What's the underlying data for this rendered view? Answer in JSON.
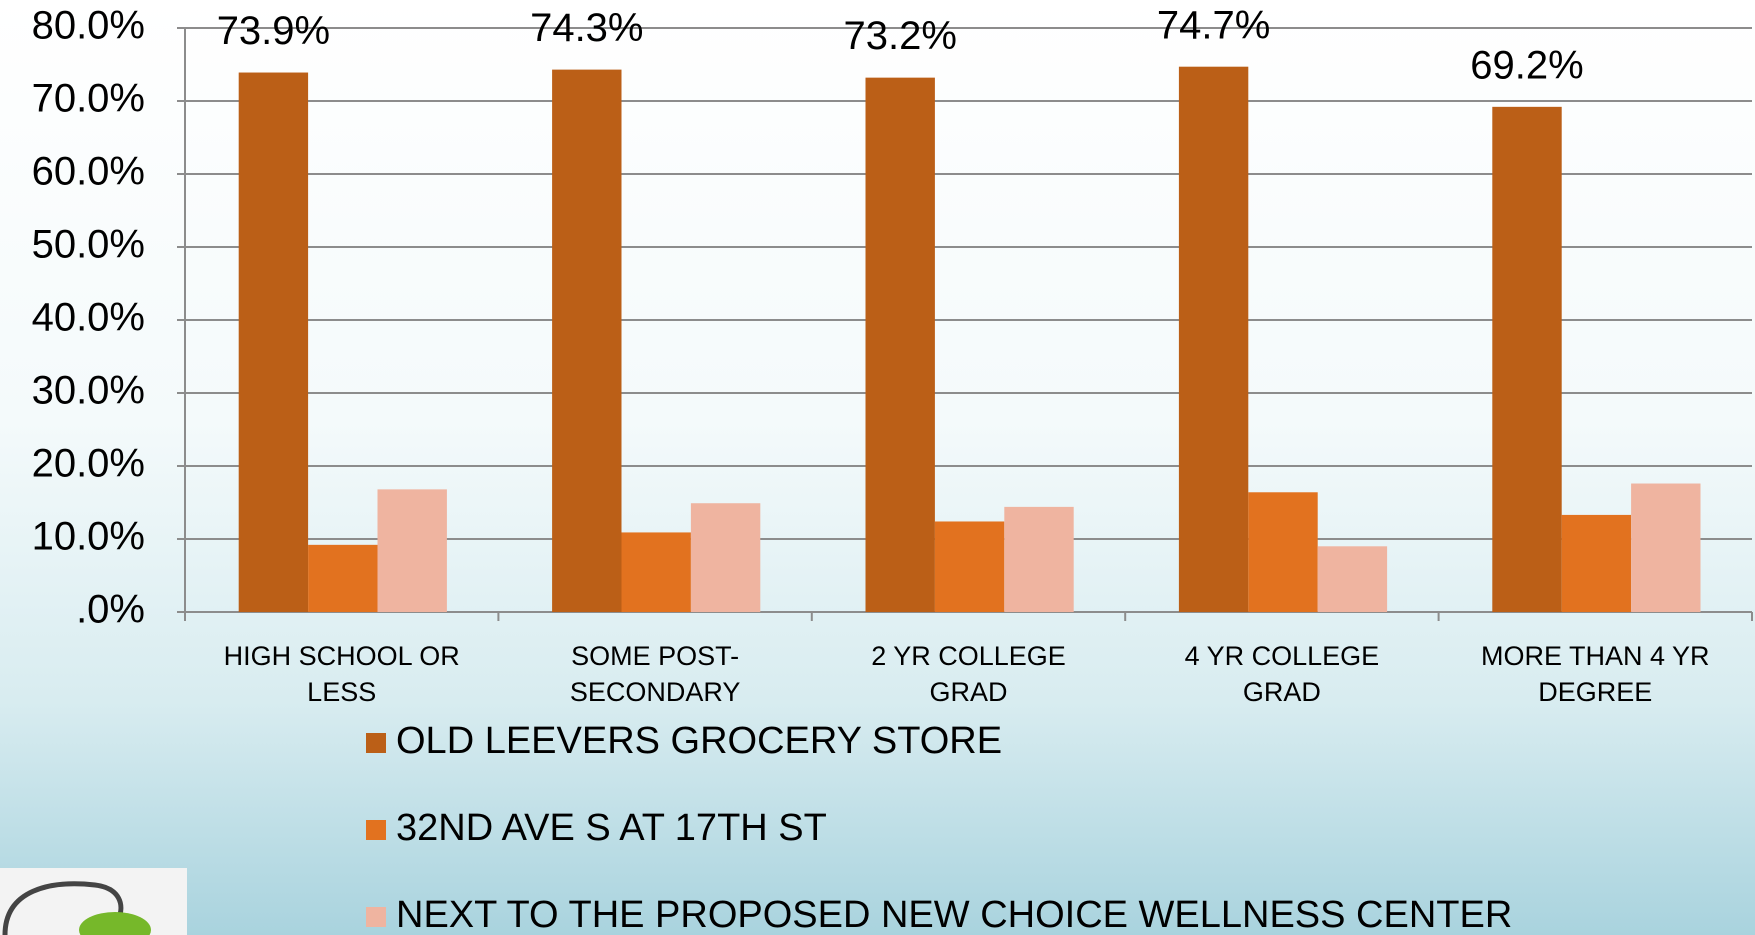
{
  "chart_data": {
    "type": "bar",
    "categories": [
      "HIGH SCHOOL OR LESS",
      "SOME POST-SECONDARY",
      "2 YR COLLEGE GRAD",
      "4 YR COLLEGE GRAD",
      "MORE THAN 4 YR DEGREE"
    ],
    "series": [
      {
        "name": "OLD LEEVERS GROCERY STORE",
        "color": "#bb5f17",
        "values": [
          73.9,
          74.3,
          73.2,
          74.7,
          69.2
        ],
        "value_labels": [
          "73.9%",
          "74.3%",
          "73.2%",
          "74.7%",
          "69.2%"
        ]
      },
      {
        "name": "32ND AVE S AT 17TH ST",
        "color": "#e2721f",
        "values": [
          9.2,
          10.9,
          12.4,
          16.4,
          13.3
        ]
      },
      {
        "name": "NEXT TO THE PROPOSED NEW CHOICE WELLNESS CENTER",
        "color": "#efb4a0",
        "values": [
          16.8,
          14.9,
          14.4,
          9.0,
          17.6
        ]
      }
    ],
    "ylim": [
      0,
      80
    ],
    "yticks": [
      {
        "value": 0,
        "label": ".0%"
      },
      {
        "value": 10,
        "label": "10.0%"
      },
      {
        "value": 20,
        "label": "20.0%"
      },
      {
        "value": 30,
        "label": "30.0%"
      },
      {
        "value": 40,
        "label": "40.0%"
      },
      {
        "value": 50,
        "label": "50.0%"
      },
      {
        "value": 60,
        "label": "60.0%"
      },
      {
        "value": 70,
        "label": "70.0%"
      },
      {
        "value": 80,
        "label": "80.0%"
      }
    ],
    "grid": true,
    "legend": "bottom"
  }
}
